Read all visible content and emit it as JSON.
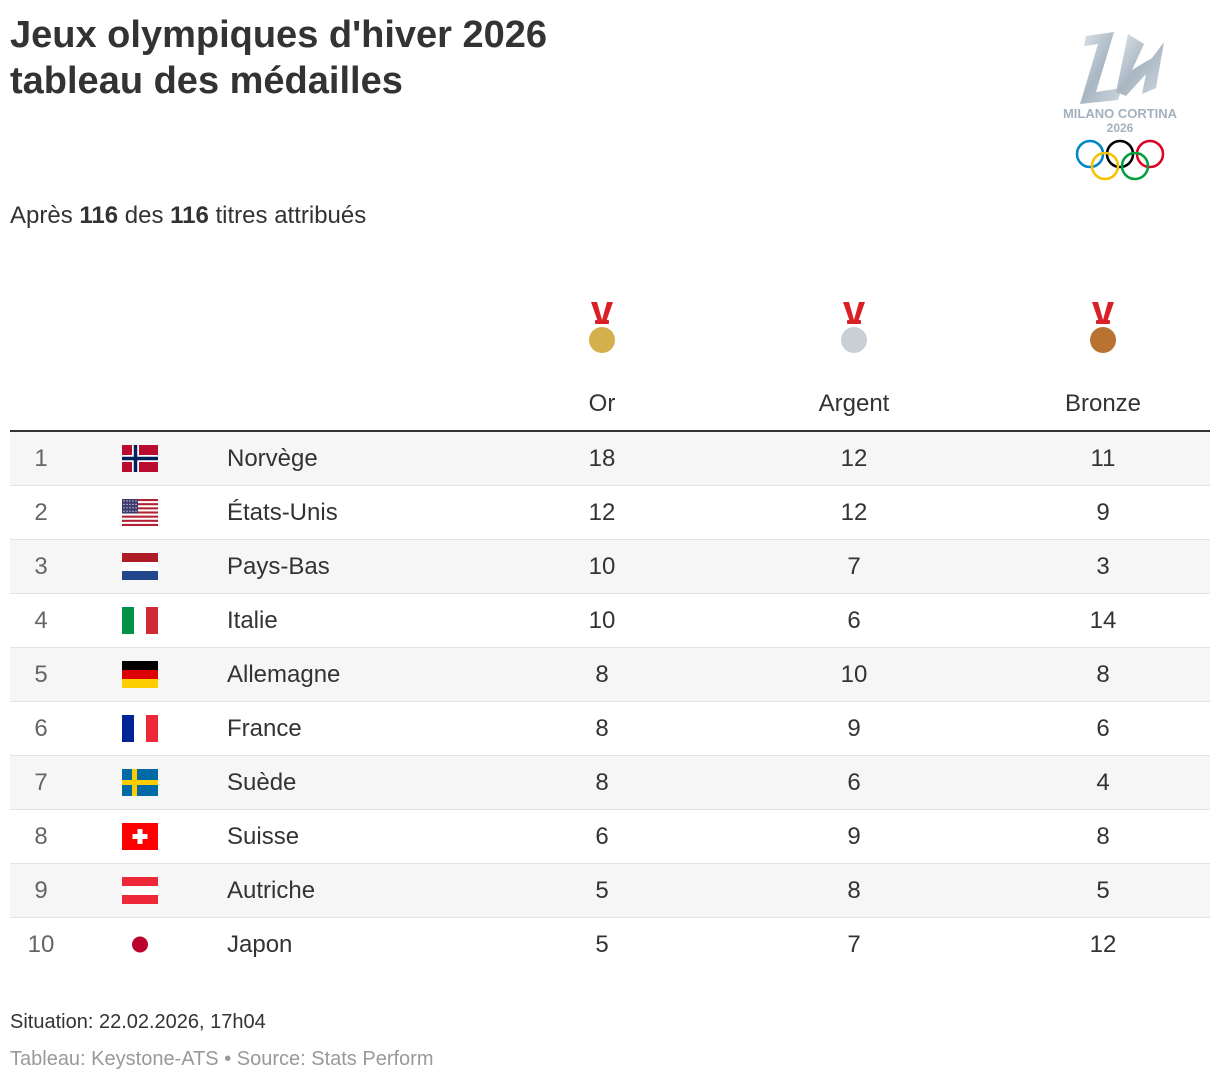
{
  "header": {
    "title_line1": "Jeux olympiques d'hiver 2026",
    "title_line2": "tableau des médailles",
    "subtitle_prefix": "Après ",
    "awarded": "116",
    "subtitle_mid": " des ",
    "total": "116",
    "subtitle_suffix": " titres attribués"
  },
  "logo": {
    "text": "MILANO CORTINA",
    "year": "2026",
    "ring_colors": [
      "#0085c7",
      "#000000",
      "#df0024",
      "#f4c300",
      "#009f3d"
    ]
  },
  "chart_data": {
    "type": "table",
    "columns": [
      "Or",
      "Argent",
      "Bronze"
    ],
    "column_icons": [
      "gold-medal-icon",
      "silver-medal-icon",
      "bronze-medal-icon"
    ],
    "medal_colors": {
      "gold": "#d4b04c",
      "silver": "#c8d0d6",
      "bronze": "#b87333",
      "ribbon": "#d92027"
    },
    "rows": [
      {
        "rank": "1",
        "flag": "norway-flag-icon",
        "country": "Norvège",
        "gold": 18,
        "silver": 12,
        "bronze": 11
      },
      {
        "rank": "2",
        "flag": "usa-flag-icon",
        "country": "États-Unis",
        "gold": 12,
        "silver": 12,
        "bronze": 9
      },
      {
        "rank": "3",
        "flag": "netherlands-flag-icon",
        "country": "Pays-Bas",
        "gold": 10,
        "silver": 7,
        "bronze": 3
      },
      {
        "rank": "4",
        "flag": "italy-flag-icon",
        "country": "Italie",
        "gold": 10,
        "silver": 6,
        "bronze": 14
      },
      {
        "rank": "5",
        "flag": "germany-flag-icon",
        "country": "Allemagne",
        "gold": 8,
        "silver": 10,
        "bronze": 8
      },
      {
        "rank": "6",
        "flag": "france-flag-icon",
        "country": "France",
        "gold": 8,
        "silver": 9,
        "bronze": 6
      },
      {
        "rank": "7",
        "flag": "sweden-flag-icon",
        "country": "Suède",
        "gold": 8,
        "silver": 6,
        "bronze": 4
      },
      {
        "rank": "8",
        "flag": "switzerland-flag-icon",
        "country": "Suisse",
        "gold": 6,
        "silver": 9,
        "bronze": 8
      },
      {
        "rank": "9",
        "flag": "austria-flag-icon",
        "country": "Autriche",
        "gold": 5,
        "silver": 8,
        "bronze": 5
      },
      {
        "rank": "10",
        "flag": "japan-flag-icon",
        "country": "Japon",
        "gold": 5,
        "silver": 7,
        "bronze": 12
      }
    ]
  },
  "footer": {
    "date": "Situation: 22.02.2026, 17h04",
    "source": "Tableau: Keystone-ATS • Source: Stats Perform"
  }
}
